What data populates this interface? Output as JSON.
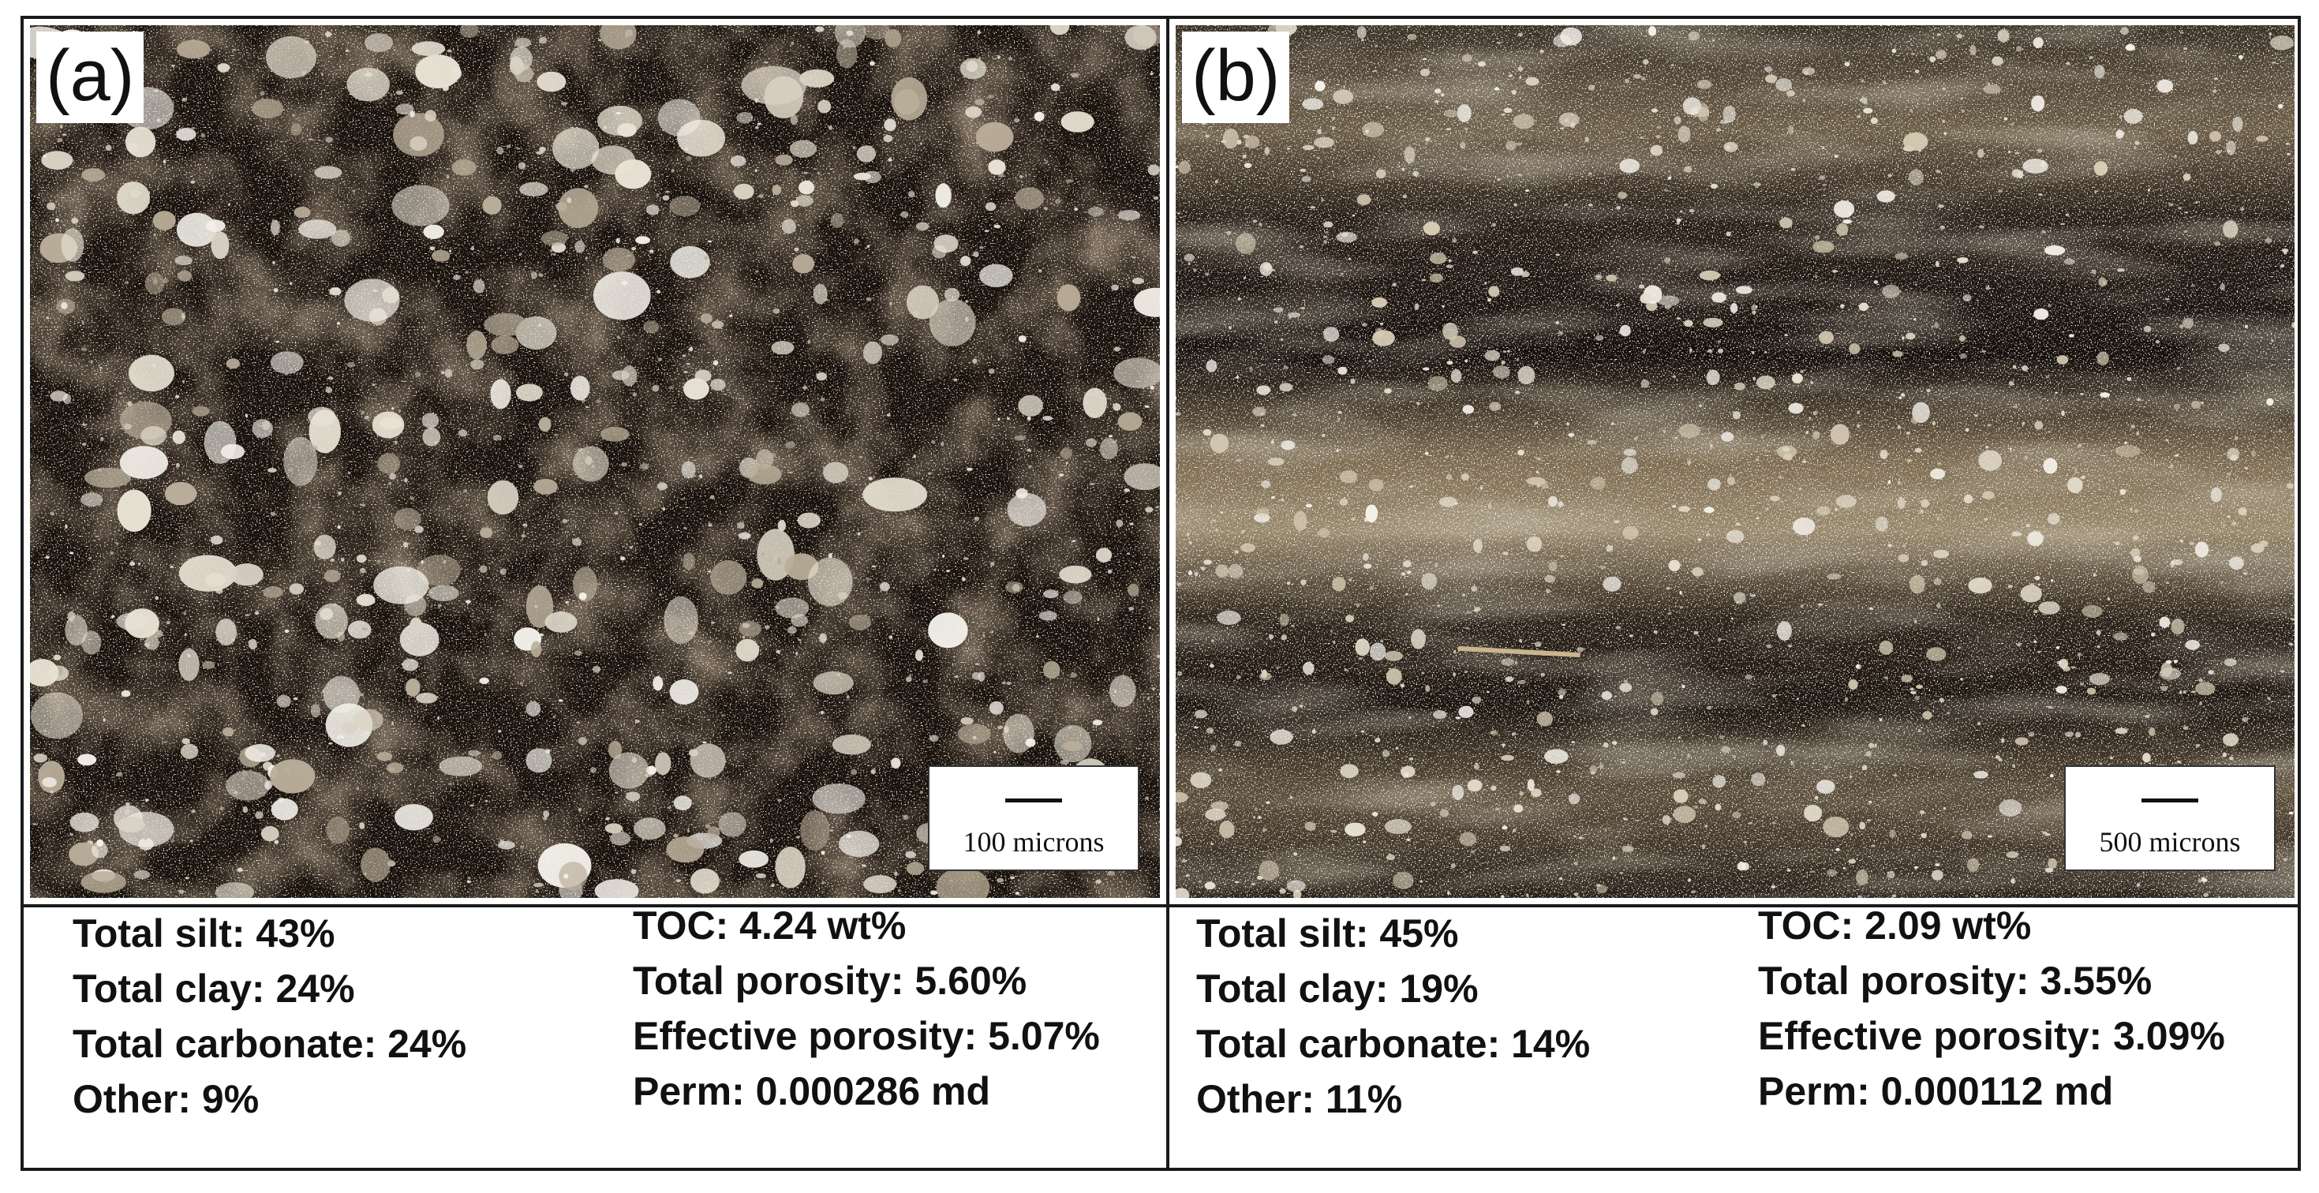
{
  "panels": [
    {
      "label": "(a)",
      "scale_bar": "100 microns",
      "stats_left": [
        "Total silt: 43%",
        "Total clay: 24%",
        "Total carbonate: 24%",
        "Other: 9%"
      ],
      "stats_right": [
        "TOC: 4.24 wt%",
        "Total porosity: 5.60%",
        "Effective porosity: 5.07%",
        "Perm: 0.000286 md"
      ]
    },
    {
      "label": "(b)",
      "scale_bar": "500 microns",
      "stats_left": [
        "Total silt: 45%",
        "Total clay: 19%",
        "Total carbonate: 14%",
        "Other: 11%"
      ],
      "stats_right": [
        "TOC: 2.09 wt%",
        "Total porosity: 3.55%",
        "Effective porosity: 3.09%",
        "Perm: 0.000112 md"
      ]
    }
  ],
  "colors": {
    "matrix_dark": "#1a120c",
    "grain_light": "#e8e2d4",
    "band_light": "#9a8a6e",
    "border": "#1a1a1a"
  }
}
